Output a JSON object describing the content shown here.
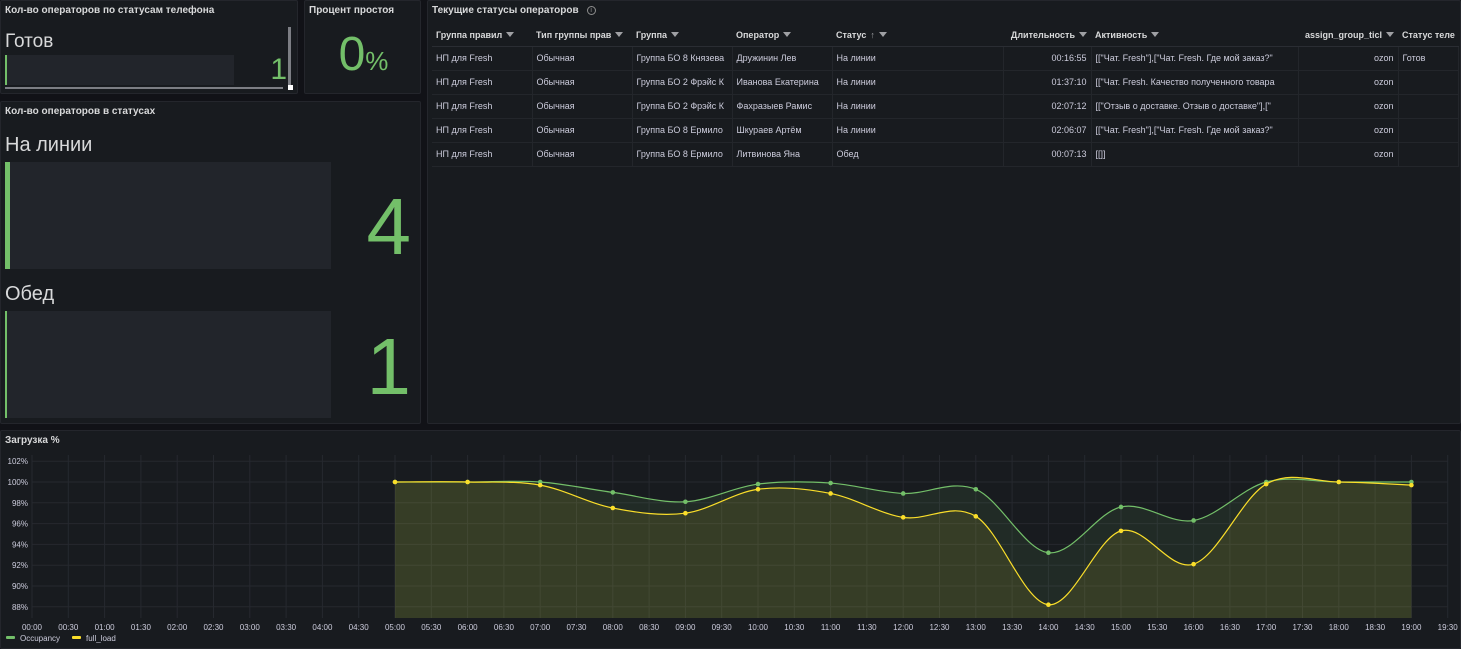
{
  "panels": {
    "phone_status": {
      "title": "Кол-во операторов по статусам телефона",
      "label": "Готов",
      "value": "1"
    },
    "idle": {
      "title": "Процент простоя",
      "value": "0",
      "unit": "%"
    },
    "status_counts": {
      "title": "Кол-во операторов в статусах",
      "items": [
        {
          "label": "На линии",
          "value": "4",
          "fill": 0.02
        },
        {
          "label": "Обед",
          "value": "1",
          "fill": 0.01
        }
      ]
    },
    "table": {
      "title": "Текущие статусы операторов",
      "columns": [
        "Группа правил",
        "Тип группы прав",
        "Группа",
        "Оператор",
        "Статус",
        "Длительность",
        "Активность",
        "assign_group_ticl",
        "Статус теле"
      ],
      "rows": [
        [
          "НП для Fresh",
          "Обычная",
          "Группа БО 8 Князева",
          "Дружинин Лев",
          "На линии",
          "00:16:55",
          "[[\"Чат. Fresh\"],[\"Чат. Fresh. Где мой заказ?\"",
          "ozon",
          "Готов"
        ],
        [
          "НП для Fresh",
          "Обычная",
          "Группа БО 2 Фрэйс К",
          "Иванова Екатерина",
          "На линии",
          "01:37:10",
          "[[\"Чат. Fresh. Качество полученного товара",
          "ozon",
          ""
        ],
        [
          "НП для Fresh",
          "Обычная",
          "Группа БО 2 Фрэйс К",
          "Фахразыев Рамис",
          "На линии",
          "02:07:12",
          "[[\"Отзыв о доставке. Отзыв о доставке\"],[\"",
          "ozon",
          ""
        ],
        [
          "НП для Fresh",
          "Обычная",
          "Группа БО 8 Ермило",
          "Шкураев Артём",
          "На линии",
          "02:06:07",
          "[[\"Чат. Fresh\"],[\"Чат. Fresh. Где мой заказ?\"",
          "ozon",
          ""
        ],
        [
          "НП для Fresh",
          "Обычная",
          "Группа БО 8 Ермило",
          "Литвинова Яна",
          "Обед",
          "00:07:13",
          "[[]]",
          "ozon",
          ""
        ]
      ]
    },
    "load": {
      "title": "Загрузка %"
    }
  },
  "colors": {
    "occupancy": "#73bf69",
    "full_load": "#fade2a",
    "stat_green": "#73bf69"
  },
  "chart_data": {
    "type": "line",
    "title": "Загрузка %",
    "x_ticks": [
      "00:00",
      "00:30",
      "01:00",
      "01:30",
      "02:00",
      "02:30",
      "03:00",
      "03:30",
      "04:00",
      "04:30",
      "05:00",
      "05:30",
      "06:00",
      "06:30",
      "07:00",
      "07:30",
      "08:00",
      "08:30",
      "09:00",
      "09:30",
      "10:00",
      "10:30",
      "11:00",
      "11:30",
      "12:00",
      "12:30",
      "13:00",
      "13:30",
      "14:00",
      "14:30",
      "15:00",
      "15:30",
      "16:00",
      "16:30",
      "17:00",
      "17:30",
      "18:00",
      "18:30",
      "19:00",
      "19:30"
    ],
    "y_ticks": [
      "88%",
      "90%",
      "92%",
      "94%",
      "96%",
      "98%",
      "100%",
      "102%"
    ],
    "ylim": [
      87,
      102
    ],
    "x": [
      "05:00",
      "06:00",
      "07:00",
      "08:00",
      "09:00",
      "10:00",
      "11:00",
      "12:00",
      "13:00",
      "14:00",
      "15:00",
      "16:00",
      "17:00",
      "18:00",
      "19:00"
    ],
    "series": [
      {
        "name": "Occupancy",
        "values": [
          100,
          100,
          100,
          99.0,
          98.1,
          99.8,
          99.9,
          98.9,
          99.3,
          93.2,
          97.6,
          96.3,
          100,
          100,
          100
        ]
      },
      {
        "name": "full_load",
        "values": [
          100,
          100,
          99.7,
          97.5,
          97.0,
          99.3,
          98.9,
          96.6,
          96.7,
          88.2,
          95.3,
          92.1,
          99.8,
          100,
          99.7
        ]
      }
    ],
    "legend": "bottom-left"
  }
}
